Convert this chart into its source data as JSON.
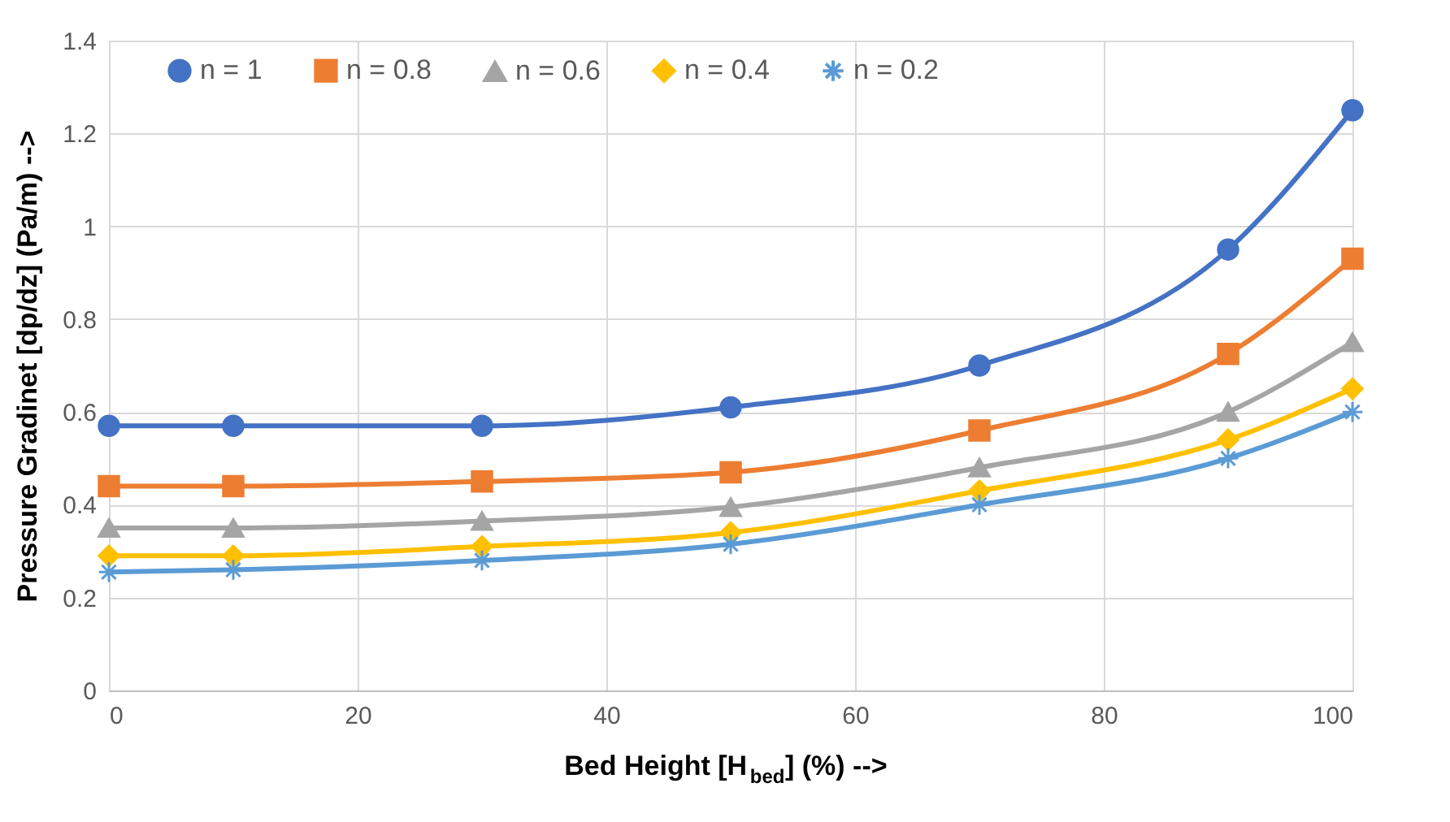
{
  "chart_data": {
    "type": "line",
    "xlabel": "Bed Height [H$_{bed}$] (%) -->",
    "ylabel": "Pressure Gradinet [dp/dz] (Pa/m) -->",
    "x": [
      0,
      10,
      30,
      50,
      70,
      90,
      100
    ],
    "series": [
      {
        "name": "n = 1",
        "color": "#4472c4",
        "marker": "circle",
        "values": [
          0.57,
          0.57,
          0.57,
          0.61,
          0.7,
          0.95,
          1.25
        ]
      },
      {
        "name": "n = 0.8",
        "color": "#ed7d31",
        "marker": "square",
        "values": [
          0.44,
          0.44,
          0.45,
          0.47,
          0.56,
          0.725,
          0.93
        ]
      },
      {
        "name": "n = 0.6",
        "color": "#a5a5a5",
        "marker": "triangle",
        "values": [
          0.35,
          0.35,
          0.365,
          0.395,
          0.48,
          0.6,
          0.75
        ]
      },
      {
        "name": "n = 0.4",
        "color": "#ffc000",
        "marker": "diamond",
        "values": [
          0.29,
          0.29,
          0.31,
          0.34,
          0.43,
          0.54,
          0.65
        ]
      },
      {
        "name": "n = 0.2",
        "color": "#5b9bd5",
        "marker": "cross",
        "values": [
          0.255,
          0.26,
          0.28,
          0.315,
          0.4,
          0.5,
          0.6
        ]
      }
    ],
    "xlim": [
      0,
      100
    ],
    "xticks": [
      0,
      20,
      40,
      60,
      80,
      100
    ],
    "ylim": [
      0,
      1.4
    ],
    "yticks": [
      0,
      0.2,
      0.4,
      0.6,
      0.8,
      1,
      1.2,
      1.4
    ],
    "grid": true,
    "legend": "top",
    "line_style": "solid"
  }
}
